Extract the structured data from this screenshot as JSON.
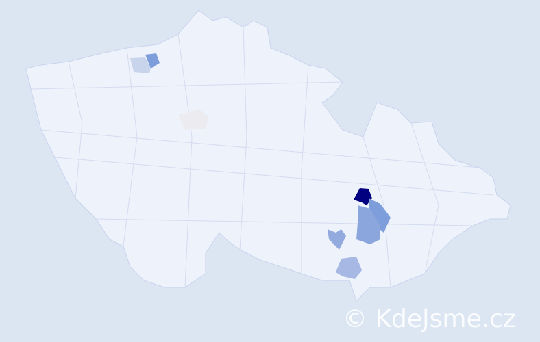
{
  "watermark": "© KdeJsme.cz",
  "colors": {
    "background": "#dce6f2",
    "land": "#eef2fa",
    "border": "#c9d3ee",
    "highlight_strong": "#000080",
    "highlight_mid": "#7d9ddb",
    "highlight_light": "#a6b8e3",
    "highlight_pale": "#c8d3ec",
    "highlight_gray": "#ececf0"
  },
  "regions": [
    {
      "name": "district-dark",
      "level": "strong"
    },
    {
      "name": "district-mid-a",
      "level": "mid"
    },
    {
      "name": "district-mid-b",
      "level": "mid"
    },
    {
      "name": "district-south-a",
      "level": "light"
    },
    {
      "name": "district-south-b",
      "level": "light"
    },
    {
      "name": "district-north-a",
      "level": "mid"
    },
    {
      "name": "district-north-b",
      "level": "pale"
    },
    {
      "name": "district-central",
      "level": "gray"
    }
  ]
}
